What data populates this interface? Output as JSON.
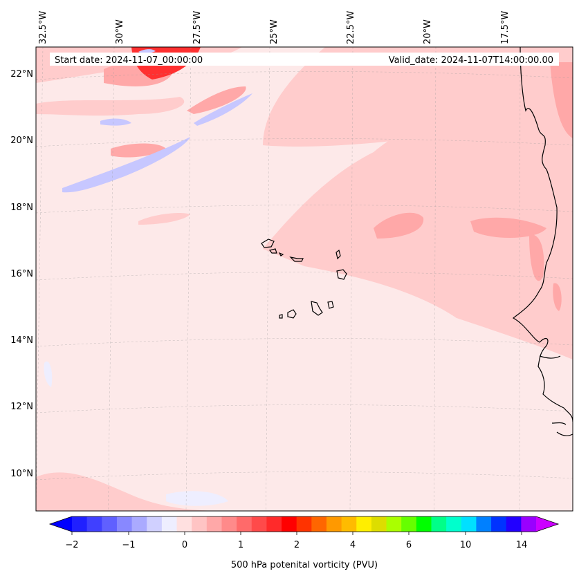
{
  "header": {
    "start_date": "Start date: 2024-11-07_00:00:00",
    "valid_date": "Valid_date: 2024-11-07T14:00:00.00"
  },
  "map": {
    "lon_labels": [
      "32.5°W",
      "30°W",
      "27.5°W",
      "25°W",
      "22.5°W",
      "20°W",
      "17.5°W"
    ],
    "lat_labels": [
      "22°N",
      "20°N",
      "18°N",
      "16°N",
      "14°N",
      "12°N",
      "10°N"
    ],
    "background_color": "#fde9e9",
    "positive_color_light": "#ffcccc",
    "positive_color_mid": "#ffa8a8",
    "negative_color": "#c7c7ff"
  },
  "colorbar": {
    "title": "500 hPa potenital vorticity (PVU)",
    "tick_labels": [
      "−2",
      "−1",
      "0",
      "1",
      "2",
      "4",
      "6",
      "10",
      "14"
    ],
    "colors": [
      "#0000ff",
      "#2020ff",
      "#4040ff",
      "#6060ff",
      "#8888ff",
      "#aaaaff",
      "#d0d0ff",
      "#eeeeff",
      "#ffe0e0",
      "#ffc4c4",
      "#ffa8a8",
      "#ff8a8a",
      "#ff6a6a",
      "#ff4a4a",
      "#ff2a2a",
      "#ff0000",
      "#ff3300",
      "#ff6600",
      "#ff9900",
      "#ffbb00",
      "#ffee00",
      "#dddd00",
      "#aaff00",
      "#66ff00",
      "#00ff00",
      "#00ff88",
      "#00ffcc",
      "#00e0ff",
      "#0080ff",
      "#0033ff",
      "#2200ff",
      "#9900ff",
      "#cc00ff"
    ]
  }
}
